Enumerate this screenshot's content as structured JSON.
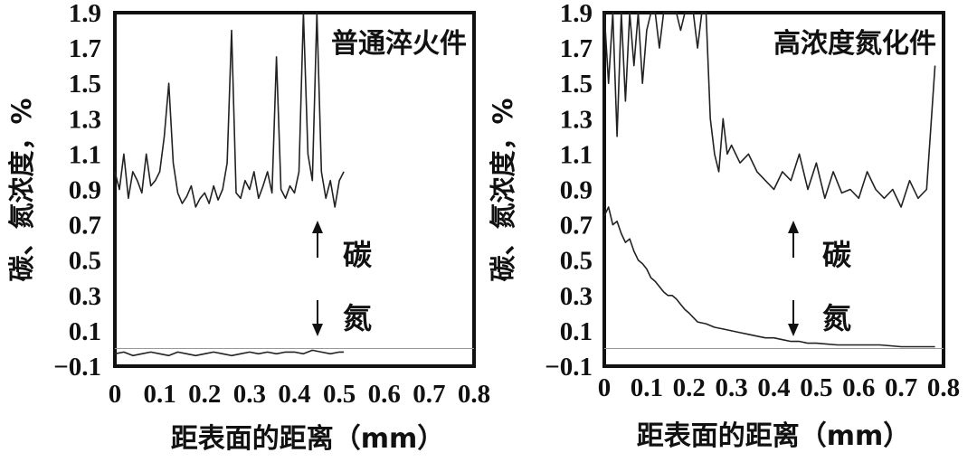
{
  "chart_data": [
    {
      "type": "line",
      "title": "普通淬火件",
      "xlabel": "距表面的距离（mm）",
      "ylabel": "碳、氮浓度，%",
      "xlim": [
        0,
        0.8
      ],
      "ylim": [
        -0.1,
        1.9
      ],
      "xticks": [
        "0",
        "0.1",
        "0.2",
        "0.3",
        "0.4",
        "0.5",
        "0.6",
        "0.7",
        "0.8"
      ],
      "yticks": [
        "1.9",
        "1.7",
        "1.5",
        "1.3",
        "1.1",
        "0.9",
        "0.7",
        "0.5",
        "0.3",
        "0.1",
        "−0.1"
      ],
      "annotations": {
        "carbon": "碳",
        "nitrogen": "氮"
      },
      "series": [
        {
          "name": "碳",
          "x": [
            0.0,
            0.01,
            0.02,
            0.03,
            0.04,
            0.05,
            0.06,
            0.07,
            0.08,
            0.09,
            0.1,
            0.11,
            0.12,
            0.13,
            0.14,
            0.15,
            0.16,
            0.17,
            0.18,
            0.19,
            0.2,
            0.21,
            0.22,
            0.23,
            0.24,
            0.25,
            0.26,
            0.27,
            0.28,
            0.29,
            0.3,
            0.31,
            0.32,
            0.33,
            0.34,
            0.35,
            0.36,
            0.37,
            0.38,
            0.39,
            0.4,
            0.41,
            0.42,
            0.43,
            0.44,
            0.45,
            0.46,
            0.47,
            0.48,
            0.49,
            0.5,
            0.51
          ],
          "values": [
            1.0,
            0.9,
            1.1,
            0.85,
            1.0,
            0.95,
            0.88,
            1.1,
            0.92,
            0.95,
            1.0,
            1.2,
            1.5,
            1.05,
            0.88,
            0.82,
            0.86,
            0.92,
            0.8,
            0.85,
            0.88,
            0.82,
            0.92,
            0.84,
            0.9,
            1.05,
            1.8,
            0.88,
            0.85,
            0.95,
            0.9,
            1.0,
            0.85,
            0.92,
            1.0,
            0.88,
            1.65,
            0.9,
            0.85,
            0.92,
            0.88,
            1.0,
            1.9,
            1.1,
            0.95,
            1.9,
            1.0,
            0.85,
            0.95,
            0.8,
            0.95,
            1.0
          ]
        },
        {
          "name": "氮",
          "x": [
            0.0,
            0.02,
            0.04,
            0.06,
            0.08,
            0.1,
            0.12,
            0.14,
            0.16,
            0.18,
            0.2,
            0.22,
            0.24,
            0.26,
            0.28,
            0.3,
            0.32,
            0.34,
            0.36,
            0.38,
            0.4,
            0.42,
            0.44,
            0.46,
            0.48,
            0.5,
            0.51
          ],
          "values": [
            -0.03,
            -0.02,
            -0.04,
            -0.03,
            -0.02,
            -0.03,
            -0.04,
            -0.02,
            -0.03,
            -0.04,
            -0.03,
            -0.02,
            -0.03,
            -0.04,
            -0.03,
            -0.02,
            -0.03,
            -0.02,
            -0.03,
            -0.02,
            -0.02,
            -0.03,
            -0.01,
            -0.02,
            -0.03,
            -0.02,
            -0.02
          ]
        }
      ]
    },
    {
      "type": "line",
      "title": "高浓度氮化件",
      "xlabel": "距表面的距离（mm）",
      "ylabel": "碳、氮浓度，%",
      "xlim": [
        0,
        0.8
      ],
      "ylim": [
        -0.1,
        1.9
      ],
      "xticks": [
        "0",
        "0.1",
        "0.2",
        "0.3",
        "0.4",
        "0.5",
        "0.6",
        "0.7",
        "0.8"
      ],
      "yticks": [
        "1.9",
        "1.7",
        "1.5",
        "1.3",
        "1.1",
        "0.9",
        "0.7",
        "0.5",
        "0.3",
        "0.1",
        "−0.1"
      ],
      "annotations": {
        "carbon": "碳",
        "nitrogen": "氮"
      },
      "series": [
        {
          "name": "碳",
          "x": [
            0.0,
            0.01,
            0.02,
            0.03,
            0.04,
            0.05,
            0.06,
            0.07,
            0.08,
            0.09,
            0.1,
            0.11,
            0.12,
            0.13,
            0.14,
            0.15,
            0.16,
            0.17,
            0.18,
            0.19,
            0.2,
            0.21,
            0.22,
            0.23,
            0.24,
            0.25,
            0.26,
            0.27,
            0.28,
            0.29,
            0.3,
            0.32,
            0.34,
            0.36,
            0.38,
            0.4,
            0.42,
            0.44,
            0.46,
            0.48,
            0.5,
            0.52,
            0.54,
            0.56,
            0.58,
            0.6,
            0.62,
            0.64,
            0.66,
            0.68,
            0.7,
            0.72,
            0.74,
            0.76,
            0.78
          ],
          "values": [
            1.9,
            1.5,
            1.9,
            1.2,
            1.9,
            1.4,
            1.9,
            1.6,
            1.9,
            1.5,
            1.8,
            1.9,
            1.9,
            1.7,
            1.9,
            1.9,
            1.9,
            1.9,
            1.8,
            1.9,
            1.9,
            1.9,
            1.7,
            1.9,
            1.9,
            1.3,
            1.1,
            1.0,
            1.3,
            1.1,
            1.15,
            1.05,
            1.1,
            1.0,
            0.95,
            0.9,
            1.0,
            0.95,
            1.1,
            0.9,
            1.05,
            0.85,
            1.0,
            0.88,
            0.9,
            0.85,
            1.0,
            0.9,
            0.85,
            0.9,
            0.8,
            0.95,
            0.85,
            0.9,
            1.6
          ]
        },
        {
          "name": "氮",
          "x": [
            0.0,
            0.01,
            0.02,
            0.03,
            0.04,
            0.05,
            0.06,
            0.07,
            0.08,
            0.09,
            0.1,
            0.11,
            0.12,
            0.13,
            0.14,
            0.15,
            0.16,
            0.17,
            0.18,
            0.19,
            0.2,
            0.22,
            0.24,
            0.26,
            0.28,
            0.3,
            0.32,
            0.34,
            0.36,
            0.38,
            0.4,
            0.42,
            0.44,
            0.46,
            0.48,
            0.5,
            0.55,
            0.6,
            0.65,
            0.7,
            0.75,
            0.78
          ],
          "values": [
            0.75,
            0.8,
            0.7,
            0.72,
            0.65,
            0.6,
            0.62,
            0.55,
            0.5,
            0.48,
            0.45,
            0.4,
            0.38,
            0.35,
            0.32,
            0.3,
            0.3,
            0.28,
            0.25,
            0.22,
            0.2,
            0.15,
            0.14,
            0.12,
            0.11,
            0.1,
            0.09,
            0.08,
            0.07,
            0.06,
            0.06,
            0.05,
            0.04,
            0.04,
            0.03,
            0.03,
            0.02,
            0.02,
            0.02,
            0.01,
            0.01,
            0.01
          ]
        }
      ]
    }
  ]
}
